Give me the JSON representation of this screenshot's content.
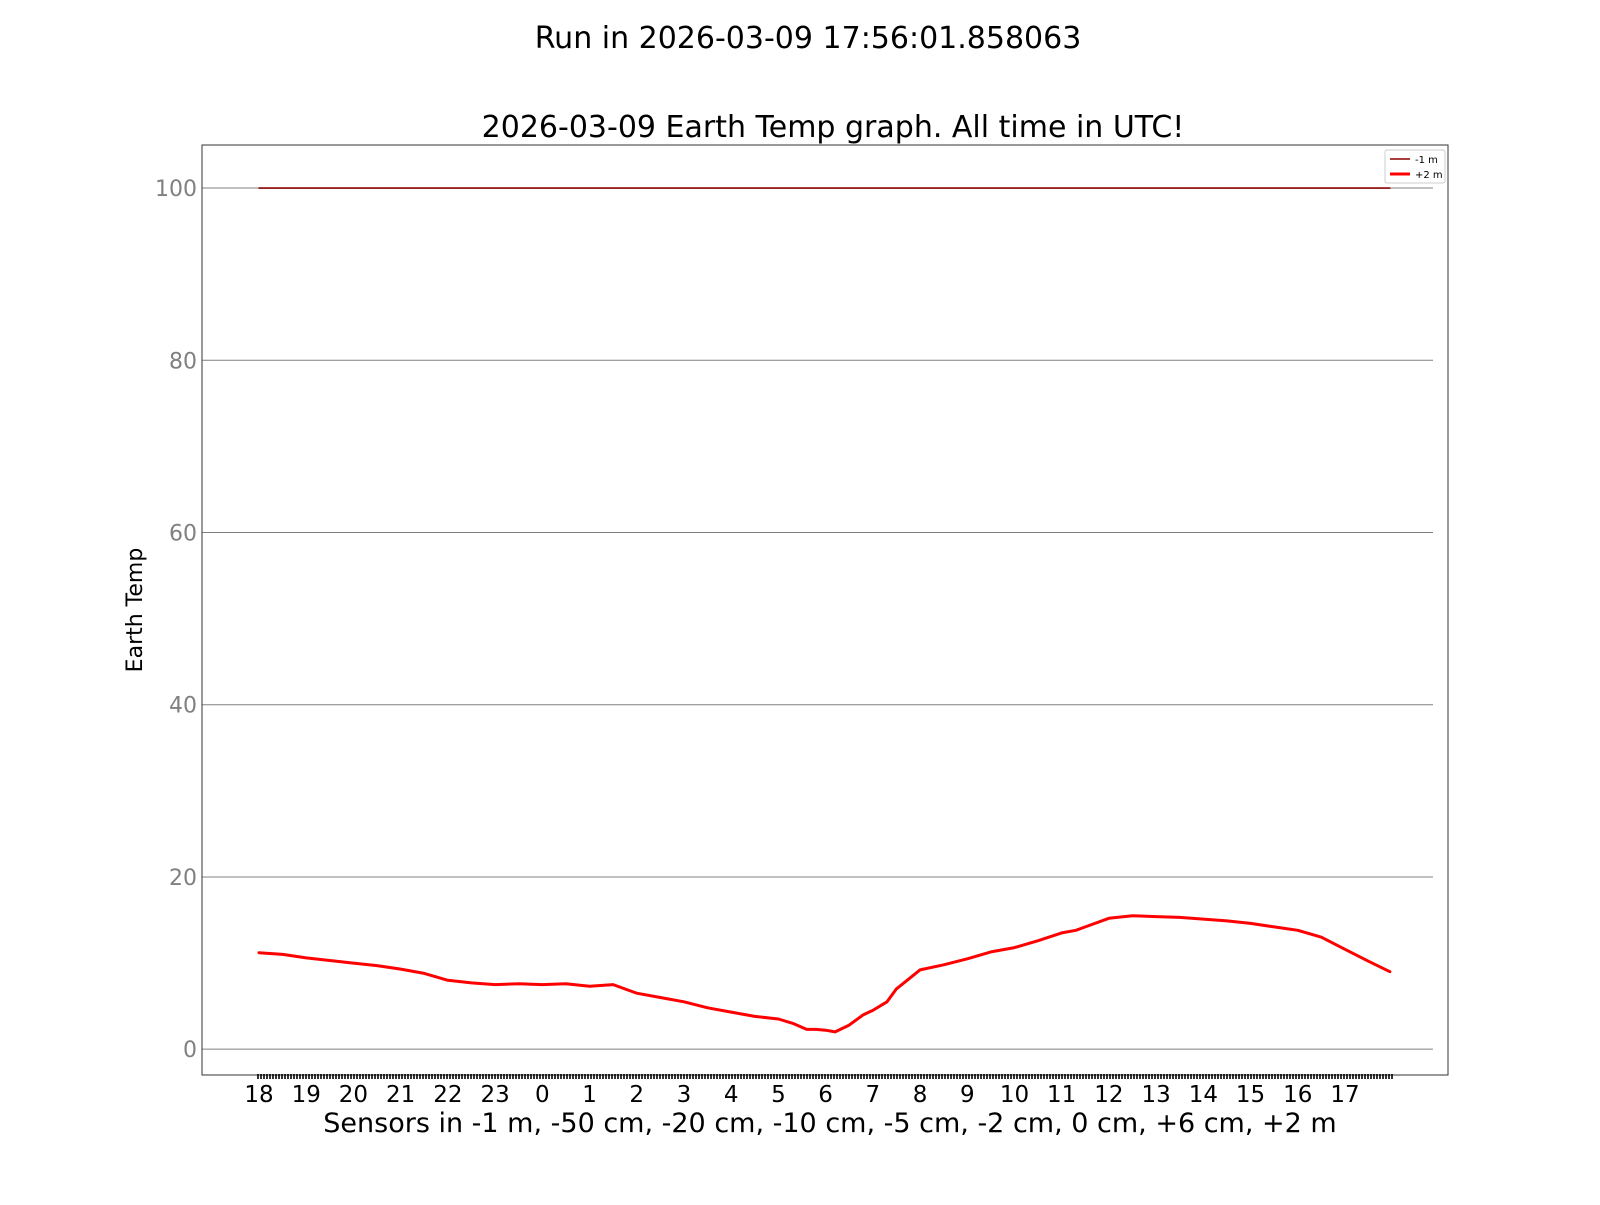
{
  "suptitle": "Run in 2026-03-09 17:56:01.858063",
  "chart_data": {
    "type": "line",
    "title": "2026-03-09 Earth Temp graph. All time in UTC!",
    "xlabel": "Sensors in  -1 m, -50 cm, -20 cm, -10 cm, -5 cm, -2 cm, 0 cm, +6 cm, +2 m",
    "ylabel": "Earth Temp",
    "x_tick_labels": [
      "18",
      "19",
      "20",
      "21",
      "22",
      "23",
      "0",
      "1",
      "2",
      "3",
      "4",
      "5",
      "6",
      "7",
      "8",
      "9",
      "10",
      "11",
      "12",
      "13",
      "14",
      "15",
      "16",
      "17"
    ],
    "xlim": [
      18,
      42
    ],
    "ylim": [
      -3,
      105
    ],
    "y_ticks": [
      0,
      20,
      40,
      60,
      80,
      100
    ],
    "grid": "horizontal",
    "legend_position": "top-right",
    "series": [
      {
        "name": "-1 m",
        "color": "#8b0000",
        "x": [
          18.0,
          41.95
        ],
        "values": [
          100,
          100
        ]
      },
      {
        "name": "+2 m",
        "color": "#ff0000",
        "x": [
          18.0,
          18.5,
          19.0,
          19.5,
          20.0,
          20.5,
          21.0,
          21.5,
          22.0,
          22.5,
          23.0,
          23.5,
          24.0,
          24.5,
          25.0,
          25.5,
          26.0,
          26.5,
          27.0,
          27.5,
          28.0,
          28.5,
          29.0,
          29.3,
          29.6,
          29.8,
          30.0,
          30.2,
          30.5,
          30.8,
          31.0,
          31.3,
          31.5,
          32.0,
          32.5,
          33.0,
          33.5,
          34.0,
          34.5,
          35.0,
          35.3,
          35.5,
          36.0,
          36.5,
          37.0,
          37.5,
          38.0,
          38.5,
          39.0,
          39.5,
          40.0,
          40.5,
          41.0,
          41.5,
          41.95
        ],
        "values": [
          11.2,
          11.0,
          10.6,
          10.3,
          10.0,
          9.7,
          9.3,
          8.8,
          8.0,
          7.7,
          7.5,
          7.6,
          7.5,
          7.6,
          7.3,
          7.5,
          6.5,
          6.0,
          5.5,
          4.8,
          4.3,
          3.8,
          3.5,
          3.0,
          2.3,
          2.3,
          2.2,
          2.0,
          2.8,
          4.0,
          4.5,
          5.5,
          7.0,
          9.2,
          9.8,
          10.5,
          11.3,
          11.8,
          12.6,
          13.5,
          13.8,
          14.2,
          15.2,
          15.5,
          15.4,
          15.3,
          15.1,
          14.9,
          14.6,
          14.2,
          13.8,
          13.0,
          11.6,
          10.2,
          9.0
        ]
      }
    ]
  }
}
